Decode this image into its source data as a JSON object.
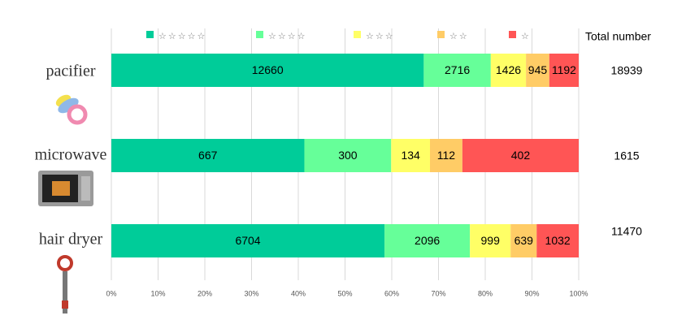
{
  "chart_data": {
    "type": "bar",
    "orientation": "horizontal",
    "stacked": "percent",
    "categories": [
      "pacifier",
      "microwave",
      "hair dryer"
    ],
    "series": [
      {
        "name": "☆☆☆☆☆",
        "color": "#00cc99",
        "values": [
          12660,
          667,
          6704
        ]
      },
      {
        "name": "☆☆☆☆",
        "color": "#66ff99",
        "values": [
          2716,
          300,
          2096
        ]
      },
      {
        "name": "☆☆☆",
        "color": "#ffff66",
        "values": [
          1426,
          134,
          999
        ]
      },
      {
        "name": "☆☆",
        "color": "#ffcc66",
        "values": [
          945,
          112,
          639
        ]
      },
      {
        "name": "☆",
        "color": "#ff5555",
        "values": [
          1192,
          402,
          1032
        ]
      }
    ],
    "totals_label": "Total number",
    "totals": [
      18939,
      1615,
      11470
    ],
    "xlim": [
      0,
      100
    ],
    "xticks": [
      {
        "value": 0,
        "label": "0%"
      },
      {
        "value": 10,
        "label": "10%"
      },
      {
        "value": 20,
        "label": "20%"
      },
      {
        "value": 30,
        "label": "30%"
      },
      {
        "value": 40,
        "label": "40%"
      },
      {
        "value": 50,
        "label": "50%"
      },
      {
        "value": 60,
        "label": "60%"
      },
      {
        "value": 70,
        "label": "70%"
      },
      {
        "value": 80,
        "label": "80%"
      },
      {
        "value": 90,
        "label": "90%"
      },
      {
        "value": 100,
        "label": "100%"
      }
    ],
    "grid": true
  }
}
